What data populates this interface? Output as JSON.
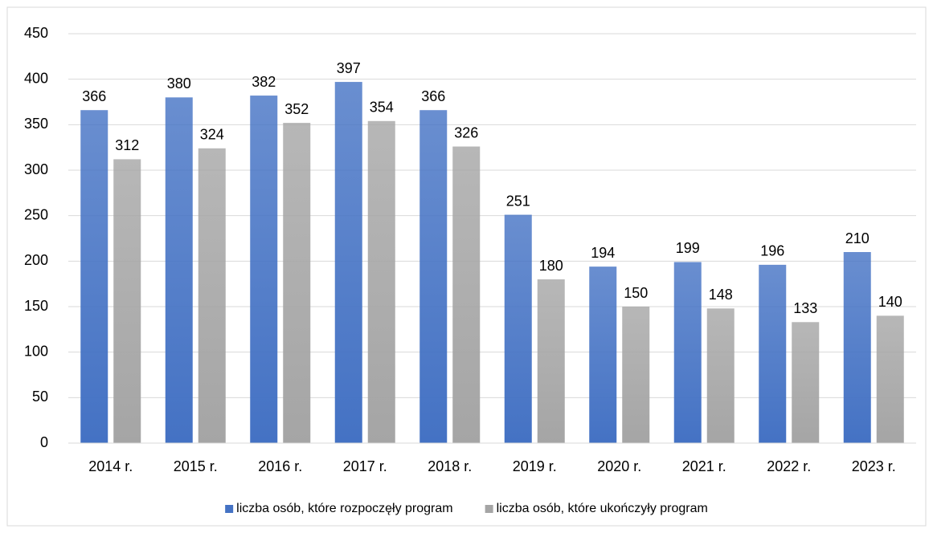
{
  "chart_data": {
    "type": "bar",
    "categories": [
      "2014 r.",
      "2015 r.",
      "2016 r.",
      "2017 r.",
      "2018 r.",
      "2019 r.",
      "2020 r.",
      "2021 r.",
      "2022 r.",
      "2023 r."
    ],
    "series": [
      {
        "name": "liczba osób, które rozpoczęły program",
        "color": "#4472c4",
        "values": [
          366,
          380,
          382,
          397,
          366,
          251,
          194,
          199,
          196,
          210
        ]
      },
      {
        "name": "liczba osób, które ukończyły program",
        "color": "#a5a5a5",
        "values": [
          312,
          324,
          352,
          354,
          326,
          180,
          150,
          148,
          133,
          140
        ]
      }
    ],
    "ylim": [
      0,
      450
    ],
    "yticks": [
      0,
      50,
      100,
      150,
      200,
      250,
      300,
      350,
      400,
      450
    ],
    "grid": true,
    "legend": "bottom"
  }
}
